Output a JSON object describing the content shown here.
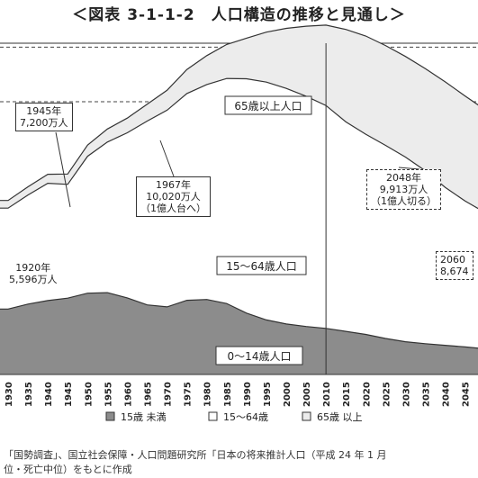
{
  "title": "＜図表 3-1-1-2　人口構造の推移と見通し＞",
  "chart_data": {
    "type": "area",
    "stacked": true,
    "x": [
      1930,
      1935,
      1940,
      1945,
      1950,
      1955,
      1960,
      1965,
      1970,
      1975,
      1980,
      1985,
      1990,
      1995,
      2000,
      2005,
      2010,
      2015,
      2020,
      2025,
      2030,
      2035,
      2040,
      2045,
      2050
    ],
    "xtick_labels": [
      "1930",
      "1935",
      "1940",
      "1945",
      "1950",
      "1955",
      "1960",
      "1965",
      "1970",
      "1975",
      "1980",
      "1985",
      "1990",
      "1995",
      "2000",
      "2005",
      "2010",
      "2015",
      "2020",
      "2025",
      "2030",
      "2035",
      "2040",
      "2045"
    ],
    "series": [
      {
        "name": "15歳 未満",
        "color": "#8c8c8c",
        "values": [
          2400,
          2580,
          2710,
          2800,
          2980,
          3000,
          2810,
          2550,
          2480,
          2720,
          2750,
          2600,
          2250,
          2000,
          1850,
          1760,
          1690,
          1580,
          1470,
          1320,
          1200,
          1130,
          1070,
          1010,
          940
        ]
      },
      {
        "name": "15～64歳",
        "color": "#ffffff",
        "values": [
          3700,
          4000,
          4300,
          4170,
          5020,
          5520,
          6050,
          6740,
          7210,
          7580,
          7880,
          8250,
          8590,
          8720,
          8640,
          8440,
          8170,
          7680,
          7340,
          7080,
          6770,
          6340,
          5790,
          5350,
          5000
        ]
      },
      {
        "name": "65歳 以上",
        "color": "#ececec",
        "values": [
          280,
          300,
          330,
          380,
          410,
          480,
          540,
          620,
          730,
          880,
          1060,
          1250,
          1490,
          1830,
          2200,
          2570,
          2950,
          3390,
          3600,
          3660,
          3690,
          3740,
          3870,
          3850,
          3770
        ]
      }
    ],
    "annotations": [
      {
        "lines": [
          "1945年",
          "7,200万人"
        ],
        "style": "solid",
        "x": 1945,
        "y": 7200
      },
      {
        "lines": [
          "1967年",
          "10,020万人",
          "（1億人台へ）"
        ],
        "style": "solid",
        "x": 1967,
        "y": 10020
      },
      {
        "lines": [
          "1920年",
          "5,596万人"
        ],
        "style": "none"
      },
      {
        "lines": [
          "2048年",
          "9,913万人",
          "（1億人切る）"
        ],
        "style": "dashed",
        "x": 2048,
        "y": 9913
      },
      {
        "lines": [
          "2060",
          "8,674"
        ],
        "style": "dashed"
      }
    ],
    "area_labels": [
      "65歳以上人口",
      "15～64歳人口",
      "0～14歳人口"
    ],
    "reference_year": 2010,
    "ylim": [
      0,
      13000
    ],
    "hlines": [
      10000,
      12000,
      5000
    ]
  },
  "legend": [
    {
      "label": "15歳 未満",
      "color": "#8c8c8c"
    },
    {
      "label": "15～64歳",
      "color": "#ffffff"
    },
    {
      "label": "65歳 以上",
      "color": "#ececec"
    }
  ],
  "source": {
    "line1": "「国勢調査」、国立社会保障・人口問題研究所「日本の将来推計人口（平成 24 年 1 月",
    "line2": "位・死亡中位）をもとに作成"
  }
}
